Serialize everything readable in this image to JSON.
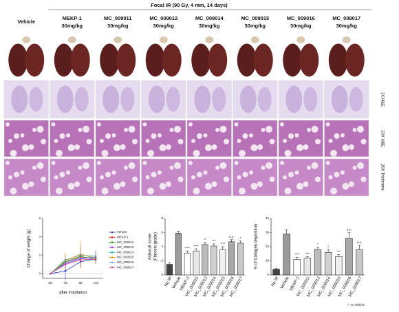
{
  "figure": {
    "title": "Focal IR (90 Gy, 4 mm, 14 days)",
    "columns": [
      {
        "name": "Vehicle"
      },
      {
        "name": "MEKP-1",
        "dose": "30mg/kg"
      },
      {
        "name": "MC_009011",
        "dose": "30mg/kg"
      },
      {
        "name": "MC_009012",
        "dose": "30mg/kg"
      },
      {
        "name": "MC_009014",
        "dose": "30mg/kg"
      },
      {
        "name": "MC_009015",
        "dose": "30mg/kg"
      },
      {
        "name": "MC_009016",
        "dose": "30mg/kg"
      },
      {
        "name": "MC_009017",
        "dose": "30mg/kg"
      }
    ],
    "row_labels": [
      "1X H&E",
      "10X H&E",
      "20X Trichrome"
    ]
  },
  "chart_data": [
    {
      "type": "line",
      "ylabel": "Change of weight (g)",
      "xlabel": "after irradiation",
      "categories": [
        "0d",
        "4d",
        "8d",
        "14d"
      ],
      "ylim": [
        -0.5,
        6
      ],
      "yticks": [
        0,
        2,
        4,
        6
      ],
      "hline": 0,
      "series": [
        {
          "name": "Vehicle",
          "color": "#1f35c4",
          "values": [
            0,
            0.3,
            1.3,
            1.6
          ],
          "errors": [
            0.1,
            1.0,
            0.5,
            0.4
          ]
        },
        {
          "name": "MEKP-1",
          "color": "#e02020",
          "values": [
            0,
            1.2,
            1.8,
            1.7
          ],
          "errors": [
            0.1,
            0.8,
            1.2,
            0.5
          ]
        },
        {
          "name": "MC_009011",
          "color": "#1a9e1a",
          "values": [
            0,
            1.3,
            1.9,
            1.5
          ],
          "errors": [
            0.1,
            0.4,
            0.6,
            0.4
          ]
        },
        {
          "name": "MC_009012",
          "color": "#8a2be2",
          "values": [
            0,
            1.1,
            1.6,
            1.8
          ],
          "errors": [
            0.1,
            0.5,
            0.6,
            0.7
          ]
        },
        {
          "name": "MC_009014",
          "color": "#20a0a0",
          "values": [
            0,
            1.5,
            2.0,
            1.9
          ],
          "errors": [
            0.1,
            0.6,
            0.8,
            0.5
          ]
        },
        {
          "name": "MC_009015",
          "color": "#e08a10",
          "values": [
            0,
            1.4,
            2.1,
            1.7
          ],
          "errors": [
            0.1,
            0.9,
            1.5,
            0.6
          ]
        },
        {
          "name": "MC_009016",
          "color": "#5aa0e0",
          "values": [
            0,
            1.2,
            1.7,
            1.8
          ],
          "errors": [
            0.1,
            0.5,
            0.7,
            0.6
          ]
        },
        {
          "name": "MC_009017",
          "color": "#d04090",
          "values": [
            0,
            1.0,
            1.5,
            1.6
          ],
          "errors": [
            0.1,
            0.4,
            0.5,
            0.4
          ]
        }
      ]
    },
    {
      "type": "bar",
      "ylabel": [
        "Ashcroft score",
        "(Fibrosis grade)"
      ],
      "categories": [
        "No IR",
        "Vehicle",
        "MEKP-1",
        "MC_009011",
        "MC_009012",
        "MC_009014",
        "MC_009015",
        "MC_009016",
        "MC_009017"
      ],
      "values": [
        1.5,
        5.9,
        3.1,
        3.4,
        4.3,
        4.1,
        3.6,
        4.7,
        4.5
      ],
      "errors": [
        0.2,
        0.3,
        0.3,
        0.3,
        0.3,
        0.3,
        0.4,
        0.3,
        0.3
      ],
      "annotations": [
        null,
        null,
        "****",
        "****",
        "**",
        "***",
        "****",
        "n.s.",
        "*"
      ],
      "colors": [
        "#444444",
        "#9a9a9a",
        "#ffffff",
        "#e8e8e8",
        "#bbbbbb",
        "#d0d0d0",
        "#f0f0f0",
        "#a8a8a8",
        "#c8c8c8"
      ],
      "ylim": [
        0,
        8
      ],
      "yticks": [
        0,
        2,
        4,
        6,
        8
      ]
    },
    {
      "type": "bar",
      "ylabel": [
        "% of Collagen deposition"
      ],
      "footnote": "*: vs Vehicle",
      "categories": [
        "No IR",
        "Vehicle",
        "MEKP-1",
        "MC_009011",
        "MC_009012",
        "MC_009014",
        "MC_009015",
        "MC_009016",
        "MC_009017"
      ],
      "values": [
        4,
        29,
        11,
        12,
        18,
        16,
        13,
        26,
        18
      ],
      "errors": [
        0.5,
        3,
        1.5,
        1,
        1.5,
        2,
        1.5,
        4,
        3
      ],
      "annotations": [
        null,
        null,
        "****",
        "***",
        "*",
        "*",
        "***",
        "n.s.",
        "n.s."
      ],
      "colors": [
        "#444444",
        "#9a9a9a",
        "#ffffff",
        "#e8e8e8",
        "#bbbbbb",
        "#d0d0d0",
        "#f0f0f0",
        "#a8a8a8",
        "#c8c8c8"
      ],
      "ylim": [
        0,
        40
      ],
      "yticks": [
        0,
        10,
        20,
        30,
        40
      ]
    }
  ]
}
